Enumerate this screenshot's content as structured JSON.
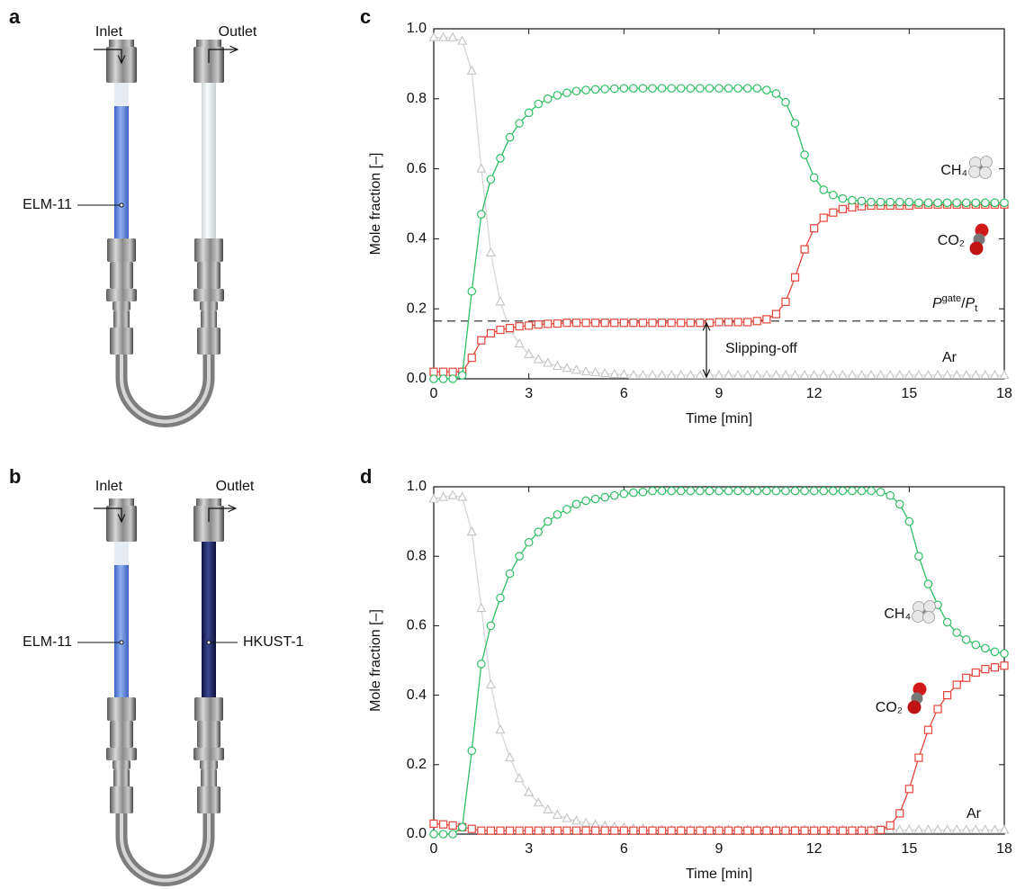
{
  "panels": [
    {
      "label": "a",
      "inlet": "Inlet",
      "outlet": "Outlet",
      "column_labels": [
        "ELM-11"
      ]
    },
    {
      "label": "b",
      "inlet": "Inlet",
      "outlet": "Outlet",
      "column_labels": [
        "ELM-11",
        "HKUST-1"
      ]
    }
  ],
  "chart_data": [
    {
      "type": "line",
      "panel_label": "c",
      "x_label": "Time [min]",
      "y_label": "Mole fraction [–]",
      "xlim": [
        0,
        18
      ],
      "xticks": [
        0,
        3,
        6,
        9,
        12,
        15,
        18
      ],
      "ylim": [
        0,
        1
      ],
      "yticks": [
        {
          "value": 0,
          "label": "0.0"
        },
        0.2,
        0.4,
        0.6,
        0.8,
        {
          "value": 1,
          "label": "1.0"
        }
      ],
      "reference_line": 0.165,
      "reference_label": [
        "P",
        "gate",
        "/",
        "P",
        "t"
      ],
      "annotation": "Slipping-off",
      "x": [
        0,
        0.3,
        0.6,
        0.9,
        1.2,
        1.5,
        1.8,
        2.1,
        2.4,
        2.7,
        3,
        3.3,
        3.6,
        3.9,
        4.2,
        4.5,
        4.8,
        5.1,
        5.4,
        5.7,
        6,
        6.3,
        6.6,
        6.9,
        7.2,
        7.5,
        7.8,
        8.1,
        8.4,
        8.7,
        9,
        9.3,
        9.6,
        9.9,
        10.2,
        10.5,
        10.8,
        11.1,
        11.4,
        11.7,
        12,
        12.3,
        12.6,
        12.9,
        13.2,
        13.5,
        13.8,
        14.1,
        14.4,
        14.7,
        15,
        15.3,
        15.6,
        15.9,
        16.2,
        16.5,
        16.8,
        17.1,
        17.4,
        17.7,
        18
      ],
      "series": [
        {
          "name": "CH₄",
          "color": "#2fbf63",
          "marker": "circle",
          "values": [
            0,
            0,
            0,
            0.01,
            0.25,
            0.47,
            0.57,
            0.63,
            0.69,
            0.73,
            0.76,
            0.785,
            0.8,
            0.81,
            0.817,
            0.822,
            0.825,
            0.827,
            0.828,
            0.829,
            0.83,
            0.83,
            0.83,
            0.83,
            0.83,
            0.83,
            0.83,
            0.83,
            0.83,
            0.83,
            0.83,
            0.83,
            0.83,
            0.83,
            0.83,
            0.825,
            0.815,
            0.79,
            0.73,
            0.64,
            0.575,
            0.54,
            0.525,
            0.515,
            0.51,
            0.508,
            0.505,
            0.505,
            0.505,
            0.505,
            0.505,
            0.503,
            0.503,
            0.503,
            0.503,
            0.503,
            0.503,
            0.503,
            0.503,
            0.503,
            0.503
          ]
        },
        {
          "name": "CO₂",
          "color": "#e5453a",
          "marker": "square",
          "values": [
            0.02,
            0.02,
            0.02,
            0.02,
            0.06,
            0.11,
            0.13,
            0.14,
            0.145,
            0.15,
            0.152,
            0.155,
            0.157,
            0.158,
            0.16,
            0.16,
            0.16,
            0.16,
            0.16,
            0.16,
            0.16,
            0.16,
            0.16,
            0.16,
            0.16,
            0.16,
            0.16,
            0.16,
            0.16,
            0.16,
            0.162,
            0.162,
            0.162,
            0.162,
            0.165,
            0.17,
            0.185,
            0.22,
            0.29,
            0.37,
            0.43,
            0.46,
            0.475,
            0.485,
            0.49,
            0.493,
            0.495,
            0.495,
            0.495,
            0.495,
            0.495,
            0.498,
            0.498,
            0.498,
            0.498,
            0.498,
            0.498,
            0.498,
            0.498,
            0.498,
            0.498
          ]
        },
        {
          "name": "Ar",
          "color": "#c4c4c4",
          "marker": "triangle",
          "values": [
            0.975,
            0.975,
            0.975,
            0.965,
            0.88,
            0.6,
            0.36,
            0.22,
            0.14,
            0.1,
            0.07,
            0.055,
            0.045,
            0.036,
            0.03,
            0.025,
            0.02,
            0.018,
            0.015,
            0.013,
            0.012,
            0.01,
            0.01,
            0.01,
            0.01,
            0.01,
            0.01,
            0.01,
            0.01,
            0.01,
            0.01,
            0.01,
            0.01,
            0.01,
            0.01,
            0.01,
            0.01,
            0.01,
            0.01,
            0.01,
            0.01,
            0.01,
            0.01,
            0.01,
            0.01,
            0.01,
            0.01,
            0.01,
            0.01,
            0.01,
            0.01,
            0.01,
            0.01,
            0.01,
            0.01,
            0.01,
            0.01,
            0.01,
            0.01,
            0.01,
            0.01
          ]
        }
      ]
    },
    {
      "type": "line",
      "panel_label": "d",
      "x_label": "Time [min]",
      "y_label": "Mole fraction [–]",
      "xlim": [
        0,
        18
      ],
      "xticks": [
        0,
        3,
        6,
        9,
        12,
        15,
        18
      ],
      "ylim": [
        0,
        1
      ],
      "yticks": [
        {
          "value": 0,
          "label": "0.0"
        },
        0.2,
        0.4,
        0.6,
        0.8,
        {
          "value": 1,
          "label": "1.0"
        }
      ],
      "x": [
        0,
        0.3,
        0.6,
        0.9,
        1.2,
        1.5,
        1.8,
        2.1,
        2.4,
        2.7,
        3,
        3.3,
        3.6,
        3.9,
        4.2,
        4.5,
        4.8,
        5.1,
        5.4,
        5.7,
        6,
        6.3,
        6.6,
        6.9,
        7.2,
        7.5,
        7.8,
        8.1,
        8.4,
        8.7,
        9,
        9.3,
        9.6,
        9.9,
        10.2,
        10.5,
        10.8,
        11.1,
        11.4,
        11.7,
        12,
        12.3,
        12.6,
        12.9,
        13.2,
        13.5,
        13.8,
        14.1,
        14.4,
        14.7,
        15,
        15.3,
        15.6,
        15.9,
        16.2,
        16.5,
        16.8,
        17.1,
        17.4,
        17.7,
        18
      ],
      "series": [
        {
          "name": "CH₄",
          "color": "#2fbf63",
          "marker": "circle",
          "values": [
            0,
            0,
            0,
            0.02,
            0.24,
            0.49,
            0.6,
            0.68,
            0.75,
            0.8,
            0.84,
            0.87,
            0.9,
            0.92,
            0.935,
            0.95,
            0.96,
            0.965,
            0.97,
            0.975,
            0.98,
            0.983,
            0.985,
            0.988,
            0.988,
            0.988,
            0.988,
            0.988,
            0.988,
            0.988,
            0.988,
            0.988,
            0.988,
            0.988,
            0.988,
            0.988,
            0.988,
            0.988,
            0.988,
            0.988,
            0.988,
            0.988,
            0.988,
            0.988,
            0.988,
            0.988,
            0.988,
            0.985,
            0.975,
            0.95,
            0.9,
            0.8,
            0.72,
            0.66,
            0.61,
            0.58,
            0.56,
            0.545,
            0.535,
            0.525,
            0.52
          ]
        },
        {
          "name": "CO₂",
          "color": "#e5453a",
          "marker": "square",
          "values": [
            0.03,
            0.028,
            0.025,
            0.02,
            0.015,
            0.01,
            0.01,
            0.01,
            0.01,
            0.01,
            0.01,
            0.01,
            0.01,
            0.01,
            0.01,
            0.01,
            0.01,
            0.01,
            0.01,
            0.01,
            0.01,
            0.01,
            0.01,
            0.01,
            0.01,
            0.01,
            0.01,
            0.01,
            0.01,
            0.01,
            0.01,
            0.01,
            0.01,
            0.01,
            0.01,
            0.01,
            0.01,
            0.01,
            0.01,
            0.01,
            0.01,
            0.01,
            0.01,
            0.01,
            0.01,
            0.01,
            0.01,
            0.012,
            0.025,
            0.06,
            0.13,
            0.22,
            0.3,
            0.36,
            0.4,
            0.43,
            0.45,
            0.465,
            0.475,
            0.48,
            0.485
          ]
        },
        {
          "name": "Ar",
          "color": "#c4c4c4",
          "marker": "triangle",
          "values": [
            0.965,
            0.97,
            0.975,
            0.97,
            0.87,
            0.65,
            0.43,
            0.3,
            0.22,
            0.16,
            0.12,
            0.09,
            0.07,
            0.055,
            0.045,
            0.038,
            0.032,
            0.027,
            0.023,
            0.02,
            0.018,
            0.016,
            0.015,
            0.012,
            0.012,
            0.012,
            0.012,
            0.012,
            0.012,
            0.012,
            0.012,
            0.012,
            0.012,
            0.012,
            0.012,
            0.012,
            0.012,
            0.012,
            0.012,
            0.012,
            0.012,
            0.012,
            0.012,
            0.012,
            0.012,
            0.012,
            0.012,
            0.012,
            0.012,
            0.012,
            0.012,
            0.012,
            0.012,
            0.012,
            0.012,
            0.012,
            0.012,
            0.012,
            0.012,
            0.012,
            0.012
          ]
        }
      ]
    }
  ]
}
